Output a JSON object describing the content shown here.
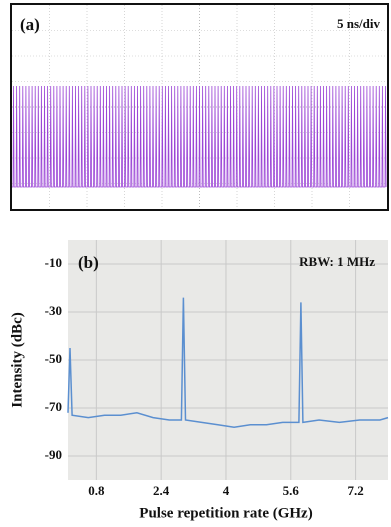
{
  "chart_data": [
    {
      "type": "oscilloscope",
      "label": "(a)",
      "annotation": "5 ns/div",
      "color": "#9b45d6"
    },
    {
      "type": "line",
      "label": "(b)",
      "annotation": "RBW: 1 MHz",
      "ylabel": "Intensity (dBc)",
      "xlabel": "Pulse repetition rate (GHz)",
      "x": [
        0.1,
        0.15,
        0.2,
        0.6,
        1.0,
        1.4,
        1.8,
        2.2,
        2.6,
        2.9,
        2.95,
        3.0,
        3.4,
        3.8,
        4.2,
        4.6,
        5.0,
        5.4,
        5.8,
        5.85,
        5.9,
        6.3,
        6.8,
        7.3,
        7.8,
        8.0
      ],
      "series": [
        {
          "color": "#5b8fd0",
          "values": [
            -72,
            -45,
            -73,
            -74,
            -73,
            -73,
            -72,
            -74,
            -75,
            -75,
            -24,
            -75,
            -76,
            -77,
            -78,
            -77,
            -77,
            -76,
            -76,
            -26,
            -76,
            -75,
            -76,
            -75,
            -75,
            -74
          ]
        }
      ],
      "xlim": [
        0.1,
        8
      ],
      "ylim": [
        -100,
        0
      ],
      "xticks": [
        0.8,
        2.4,
        4.0,
        5.6,
        7.2
      ],
      "yticks": [
        -10,
        -30,
        -50,
        -70,
        -90
      ],
      "grid": true
    }
  ]
}
